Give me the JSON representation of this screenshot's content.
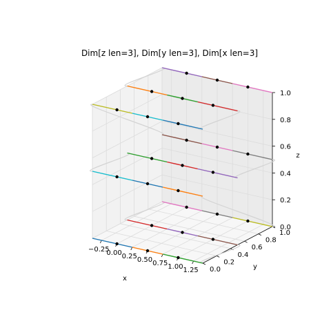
{
  "chart_data": {
    "type": "line",
    "projection": "3d",
    "title": "Dim[z len=3], Dim[y len=3], Dim[x len=3]",
    "xlabel": "x",
    "ylabel": "y",
    "zlabel": "z",
    "xlim": [
      -0.4,
      1.4
    ],
    "ylim": [
      0.0,
      1.0
    ],
    "zlim": [
      0.0,
      1.0
    ],
    "xticks": [
      "−0.25",
      "0.00",
      "0.25",
      "0.50",
      "0.75",
      "1.00",
      "1.25"
    ],
    "xtick_values": [
      -0.25,
      0.0,
      0.25,
      0.5,
      0.75,
      1.0,
      1.25
    ],
    "yticks": [
      "0.0",
      "0.2",
      "0.4",
      "0.6",
      "0.8",
      "1.0"
    ],
    "ytick_values": [
      0.0,
      0.2,
      0.4,
      0.6,
      0.8,
      1.0
    ],
    "zticks": [
      "0.0",
      "0.2",
      "0.4",
      "0.6",
      "0.8",
      "1.0"
    ],
    "ztick_values": [
      0.0,
      0.2,
      0.4,
      0.6,
      0.8,
      1.0
    ],
    "grid": true,
    "cells": {
      "x_values": [
        0,
        0.5,
        1
      ],
      "y_values": [
        0,
        0.5,
        1
      ],
      "z_values": [
        0,
        0.5,
        1
      ],
      "x_extent": [
        -0.4,
        1.4
      ]
    },
    "segment_colors": [
      "#1f77b4",
      "#ff7f0e",
      "#2ca02c",
      "#d62728",
      "#9467bd",
      "#8c564b",
      "#e377c2",
      "#7f7f7f",
      "#bcbd22",
      "#17becf"
    ],
    "path_color": "#d3d3d3",
    "point_color": "#000000"
  }
}
